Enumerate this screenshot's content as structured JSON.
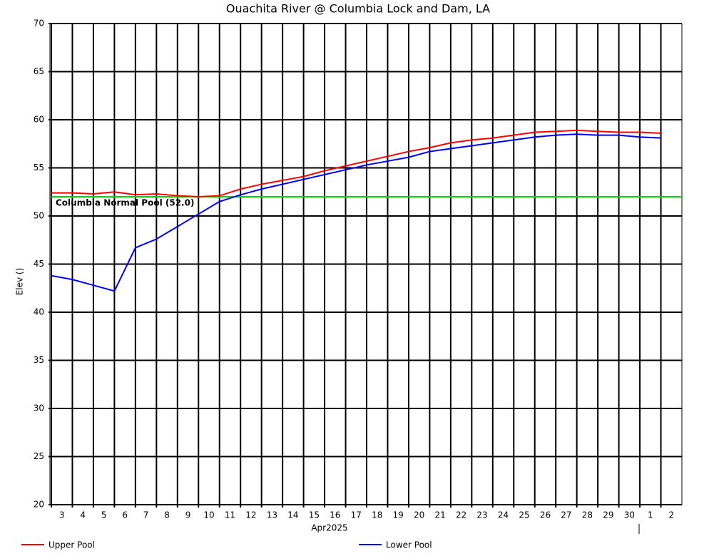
{
  "chart_data": {
    "type": "line",
    "title": "Ouachita River @ Columbia Lock and Dam, LA",
    "ylabel": "Elev ()",
    "xlabel": "Apr2025",
    "x": [
      "2025-04-03",
      "2025-04-04",
      "2025-04-05",
      "2025-04-06",
      "2025-04-07",
      "2025-04-08",
      "2025-04-09",
      "2025-04-10",
      "2025-04-11",
      "2025-04-12",
      "2025-04-13",
      "2025-04-14",
      "2025-04-15",
      "2025-04-16",
      "2025-04-17",
      "2025-04-18",
      "2025-04-19",
      "2025-04-20",
      "2025-04-21",
      "2025-04-22",
      "2025-04-23",
      "2025-04-24",
      "2025-04-25",
      "2025-04-26",
      "2025-04-27",
      "2025-04-28",
      "2025-04-29",
      "2025-04-30",
      "2025-05-01",
      "2025-05-02"
    ],
    "series": [
      {
        "name": "Upper Pool",
        "color": "#ff0000",
        "values": [
          52.4,
          52.4,
          52.3,
          52.5,
          52.2,
          52.3,
          52.1,
          52.0,
          52.1,
          52.8,
          53.3,
          53.7,
          54.1,
          54.7,
          55.2,
          55.7,
          56.2,
          56.7,
          57.1,
          57.6,
          57.9,
          58.1,
          58.4,
          58.7,
          58.8,
          58.9,
          58.8,
          58.7,
          58.7,
          58.6
        ]
      },
      {
        "name": "Lower Pool",
        "color": "#0000ff",
        "values": [
          43.8,
          43.4,
          42.8,
          42.2,
          46.7,
          47.6,
          48.9,
          50.2,
          51.5,
          52.2,
          52.8,
          53.3,
          53.8,
          54.3,
          54.8,
          55.3,
          55.7,
          56.1,
          56.7,
          57.0,
          57.3,
          57.6,
          57.9,
          58.2,
          58.4,
          58.5,
          58.4,
          58.4,
          58.2,
          58.1
        ]
      }
    ],
    "reference_lines": [
      {
        "value": 52,
        "label": "Columbia Normal Pool (52.0)",
        "color": "#00dd00"
      }
    ],
    "xlim": [
      "2025-04-03",
      "2025-05-03"
    ],
    "xticks": [
      {
        "value": "2025-04-03",
        "label": "3"
      },
      {
        "value": "2025-04-04",
        "label": "4"
      },
      {
        "value": "2025-04-05",
        "label": "5"
      },
      {
        "value": "2025-04-06",
        "label": "6"
      },
      {
        "value": "2025-04-07",
        "label": "7"
      },
      {
        "value": "2025-04-08",
        "label": "8"
      },
      {
        "value": "2025-04-09",
        "label": "9"
      },
      {
        "value": "2025-04-10",
        "label": "10"
      },
      {
        "value": "2025-04-11",
        "label": "11"
      },
      {
        "value": "2025-04-12",
        "label": "12"
      },
      {
        "value": "2025-04-13",
        "label": "13"
      },
      {
        "value": "2025-04-14",
        "label": "14"
      },
      {
        "value": "2025-04-15",
        "label": "15"
      },
      {
        "value": "2025-04-16",
        "label": "16"
      },
      {
        "value": "2025-04-17",
        "label": "17"
      },
      {
        "value": "2025-04-18",
        "label": "18"
      },
      {
        "value": "2025-04-19",
        "label": "19"
      },
      {
        "value": "2025-04-20",
        "label": "20"
      },
      {
        "value": "2025-04-21",
        "label": "21"
      },
      {
        "value": "2025-04-22",
        "label": "22"
      },
      {
        "value": "2025-04-23",
        "label": "23"
      },
      {
        "value": "2025-04-24",
        "label": "24"
      },
      {
        "value": "2025-04-25",
        "label": "25"
      },
      {
        "value": "2025-04-26",
        "label": "26"
      },
      {
        "value": "2025-04-27",
        "label": "27"
      },
      {
        "value": "2025-04-28",
        "label": "28"
      },
      {
        "value": "2025-04-29",
        "label": "29"
      },
      {
        "value": "2025-04-30",
        "label": "30"
      },
      {
        "value": "2025-05-01",
        "label": "1"
      },
      {
        "value": "2025-05-02",
        "label": "2"
      }
    ],
    "ylim": [
      20,
      70
    ],
    "yticks": [
      20,
      25,
      30,
      35,
      40,
      45,
      50,
      55,
      60,
      65,
      70
    ],
    "grid": true
  }
}
